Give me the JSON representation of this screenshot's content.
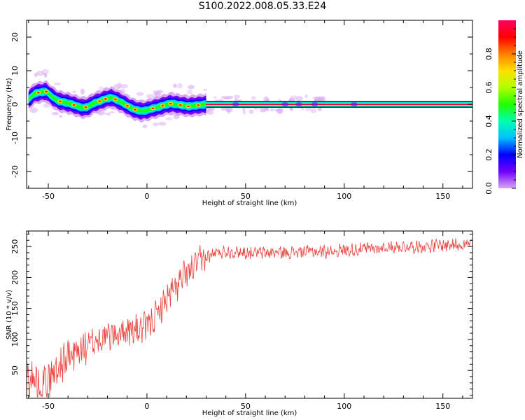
{
  "figure": {
    "title": "S100.2022.008.05.33.E24"
  },
  "chart_data": [
    {
      "type": "heatmap",
      "title": "",
      "xlabel": "Height of straight line (km)",
      "ylabel": "Frequency (Hz)",
      "xlim": [
        -61,
        165
      ],
      "ylim": [
        -25,
        25
      ],
      "xticks": [
        -50,
        0,
        50,
        100,
        150
      ],
      "yticks": [
        -20,
        -10,
        0,
        10,
        20
      ],
      "grid": false,
      "colorbar": {
        "label": "Normalized spectral amplitude",
        "ticks": [
          0.0,
          0.2,
          0.4,
          0.6,
          0.8
        ],
        "range": [
          0,
          1
        ],
        "colormap": [
          "#d8a8f0",
          "#7000ff",
          "#0000ff",
          "#00c0ff",
          "#00ffb0",
          "#20ff00",
          "#b0ff00",
          "#ffe000",
          "#ff8000",
          "#ff0000",
          "#ff0060"
        ]
      },
      "ridge": {
        "x": [
          -60,
          -57,
          -54,
          -51,
          -48,
          -45,
          -42,
          -39,
          -36,
          -33,
          -30,
          -27,
          -24,
          -21,
          -18,
          -15,
          -12,
          -9,
          -6,
          -3,
          0,
          3,
          6,
          9,
          12,
          15,
          18,
          21,
          24,
          27,
          30,
          165
        ],
        "frequency": [
          1.5,
          3.2,
          3.6,
          3.8,
          2.2,
          1.0,
          0.6,
          0.2,
          -0.4,
          -1.0,
          -0.8,
          0.3,
          0.9,
          1.6,
          2.0,
          1.2,
          0.3,
          -0.8,
          -1.6,
          -2.0,
          -1.8,
          -1.2,
          -0.8,
          -0.2,
          0.2,
          0.0,
          -0.3,
          -0.6,
          -0.4,
          -0.2,
          0.0,
          0.0
        ]
      }
    },
    {
      "type": "line",
      "title": "",
      "xlabel": "Height of straight line (km)",
      "ylabel": "SNR (10 * v/v)",
      "xlim": [
        -61,
        165
      ],
      "ylim": [
        5,
        275
      ],
      "xticks": [
        -50,
        0,
        50,
        100,
        150
      ],
      "yticks": [
        50,
        100,
        150,
        200,
        250
      ],
      "grid": false,
      "series": [
        {
          "color": "#e8403a",
          "x": [
            -61,
            -55,
            -50,
            -45,
            -40,
            -35,
            -30,
            -25,
            -20,
            -15,
            -10,
            -5,
            0,
            5,
            10,
            15,
            20,
            25,
            30,
            35,
            40,
            50,
            60,
            70,
            80,
            90,
            100,
            110,
            120,
            130,
            140,
            150,
            160,
            165
          ],
          "values": [
            40,
            30,
            35,
            55,
            70,
            80,
            90,
            100,
            105,
            110,
            115,
            115,
            120,
            140,
            165,
            185,
            205,
            220,
            232,
            240,
            242,
            240,
            240,
            240,
            242,
            242,
            244,
            246,
            248,
            250,
            250,
            252,
            254,
            255
          ]
        }
      ]
    }
  ]
}
